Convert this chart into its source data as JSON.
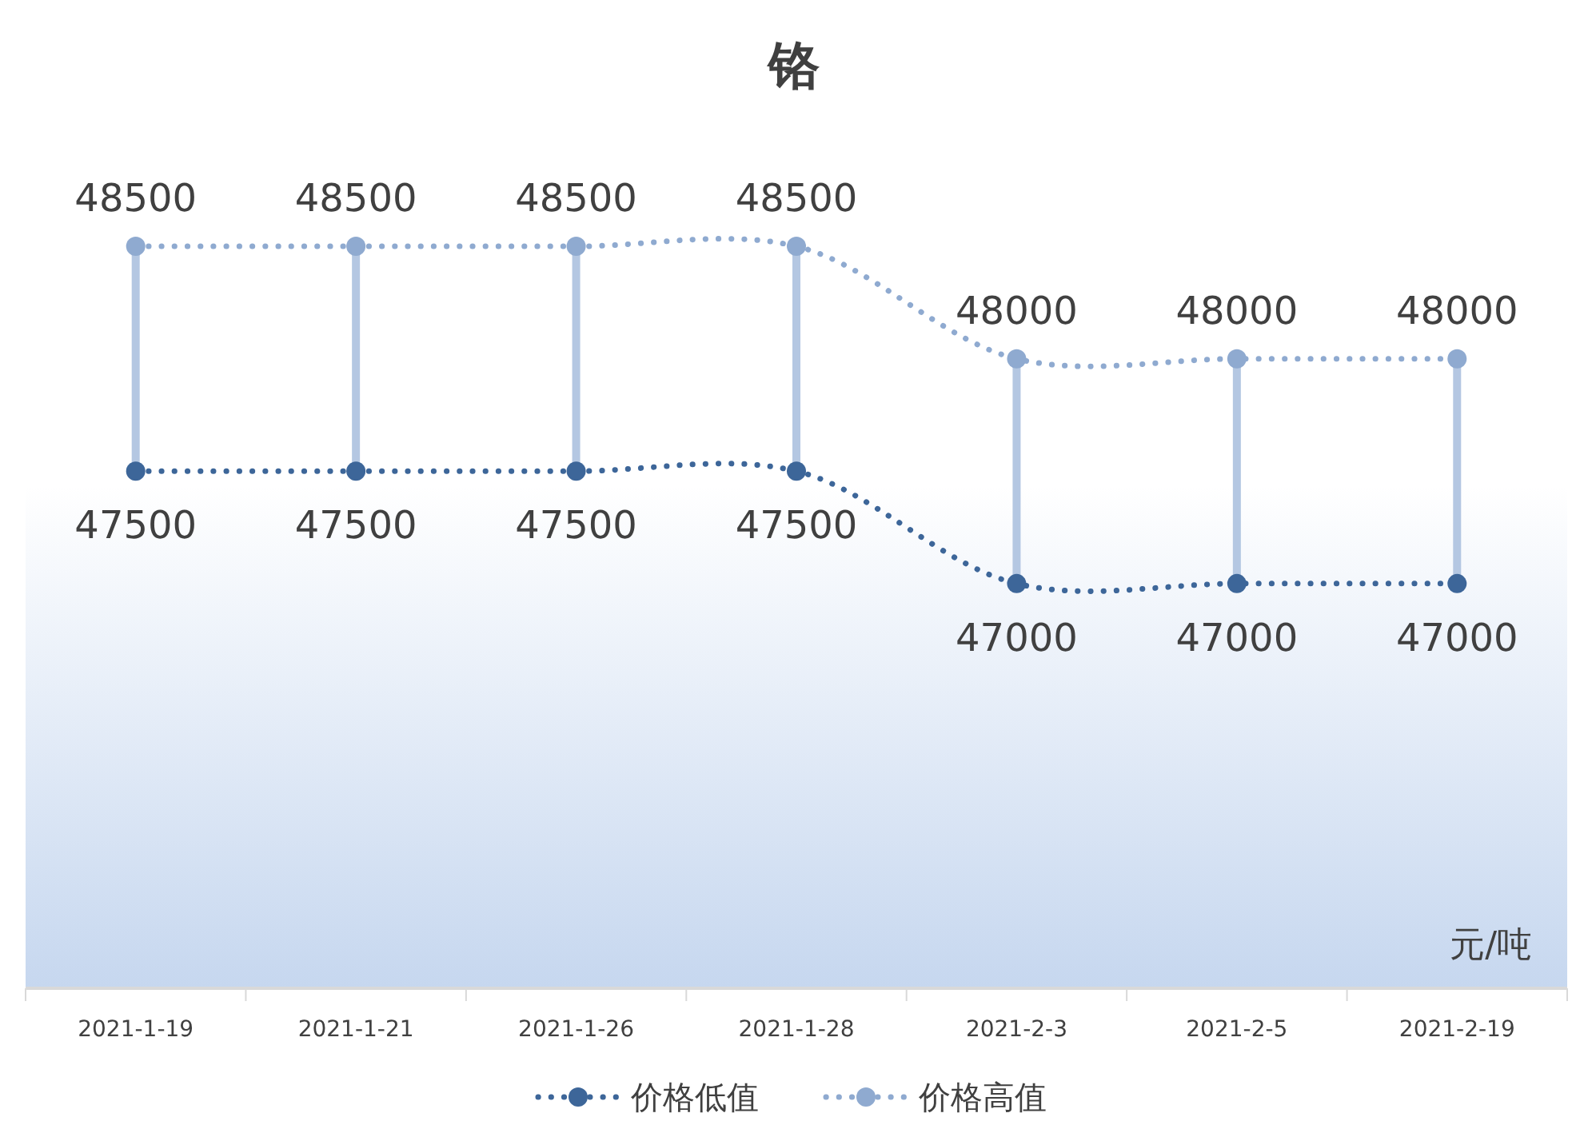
{
  "chart_data": {
    "type": "line",
    "title": "铬",
    "annotations": [
      "元/吨"
    ],
    "categories": [
      "2021-1-19",
      "2021-1-21",
      "2021-1-26",
      "2021-1-28",
      "2021-2-3",
      "2021-2-5",
      "2021-2-19"
    ],
    "series": [
      {
        "name": "价格低值",
        "color": "#3d6699",
        "values": [
          47500,
          47500,
          47500,
          47500,
          47000,
          47000,
          47000
        ]
      },
      {
        "name": "价格高值",
        "color": "#8faad0",
        "values": [
          48500,
          48500,
          48500,
          48500,
          48000,
          48000,
          48000
        ]
      }
    ],
    "data_labels": true,
    "marker": "circle",
    "line_style": "dotted",
    "legend": "bottom"
  }
}
